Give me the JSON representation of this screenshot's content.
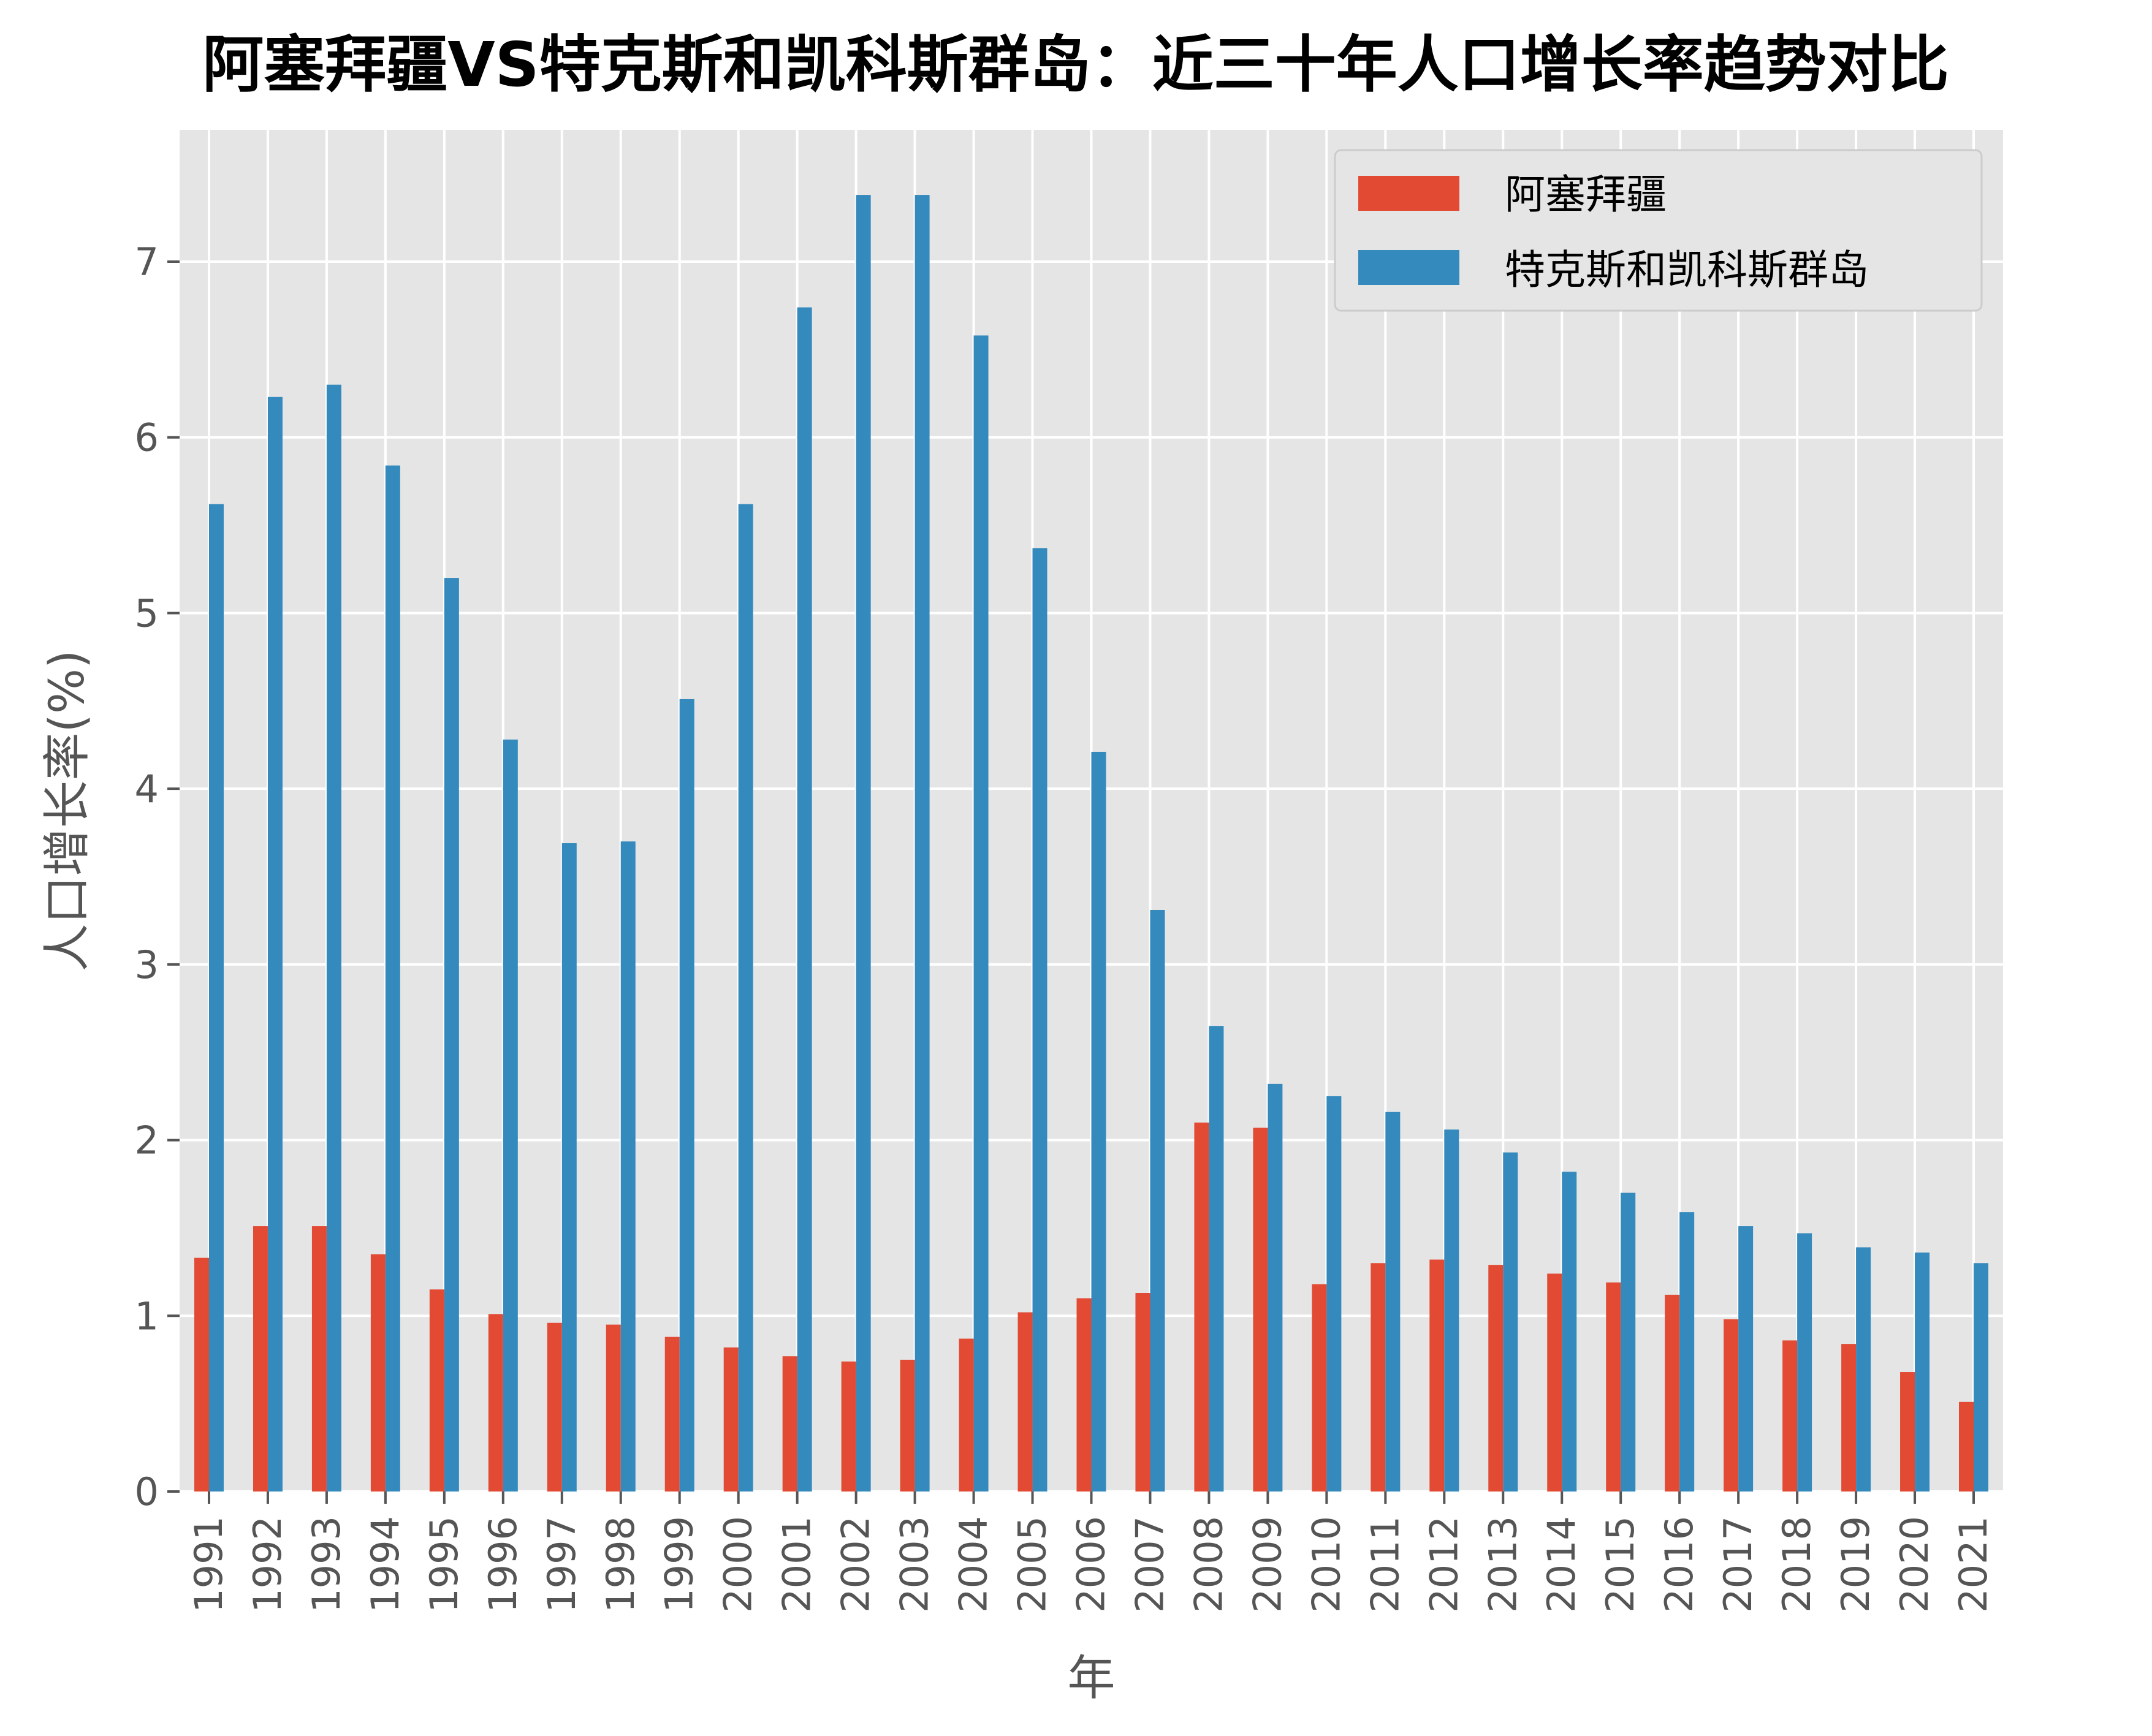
{
  "chart_data": {
    "type": "bar",
    "title": "阿塞拜疆VS特克斯和凯科斯群岛：近三十年人口增长率趋势对比",
    "xlabel": "年",
    "ylabel": "人口增长率(%)",
    "ylim": [
      0,
      7.75
    ],
    "yticks": [
      "0",
      "1",
      "2",
      "3",
      "4",
      "5",
      "6",
      "7"
    ],
    "grid": true,
    "legend_position": "top-right",
    "categories": [
      "1991",
      "1992",
      "1993",
      "1994",
      "1995",
      "1996",
      "1997",
      "1998",
      "1999",
      "2000",
      "2001",
      "2002",
      "2003",
      "2004",
      "2005",
      "2006",
      "2007",
      "2008",
      "2009",
      "2010",
      "2011",
      "2012",
      "2013",
      "2014",
      "2015",
      "2016",
      "2017",
      "2018",
      "2019",
      "2020",
      "2021"
    ],
    "series": [
      {
        "name": "阿塞拜疆",
        "color": "#E24A33",
        "values": [
          1.33,
          1.51,
          1.51,
          1.35,
          1.15,
          1.01,
          0.96,
          0.95,
          0.88,
          0.82,
          0.77,
          0.74,
          0.75,
          0.87,
          1.02,
          1.1,
          1.13,
          2.1,
          2.07,
          1.18,
          1.3,
          1.32,
          1.29,
          1.24,
          1.19,
          1.12,
          0.98,
          0.86,
          0.84,
          0.68,
          0.51
        ]
      },
      {
        "name": "特克斯和凯科斯群岛",
        "color": "#348ABD",
        "values": [
          5.62,
          6.23,
          6.3,
          5.84,
          5.2,
          4.28,
          3.69,
          3.7,
          4.51,
          5.62,
          6.74,
          7.38,
          7.38,
          6.58,
          5.37,
          4.21,
          3.31,
          2.65,
          2.32,
          2.25,
          2.16,
          2.06,
          1.93,
          1.82,
          1.7,
          1.59,
          1.51,
          1.47,
          1.39,
          1.36,
          1.3
        ]
      }
    ]
  },
  "style": {
    "plot_bg": "#E5E5E5",
    "grid_color": "#FFFFFF",
    "text_color": "#555555"
  }
}
